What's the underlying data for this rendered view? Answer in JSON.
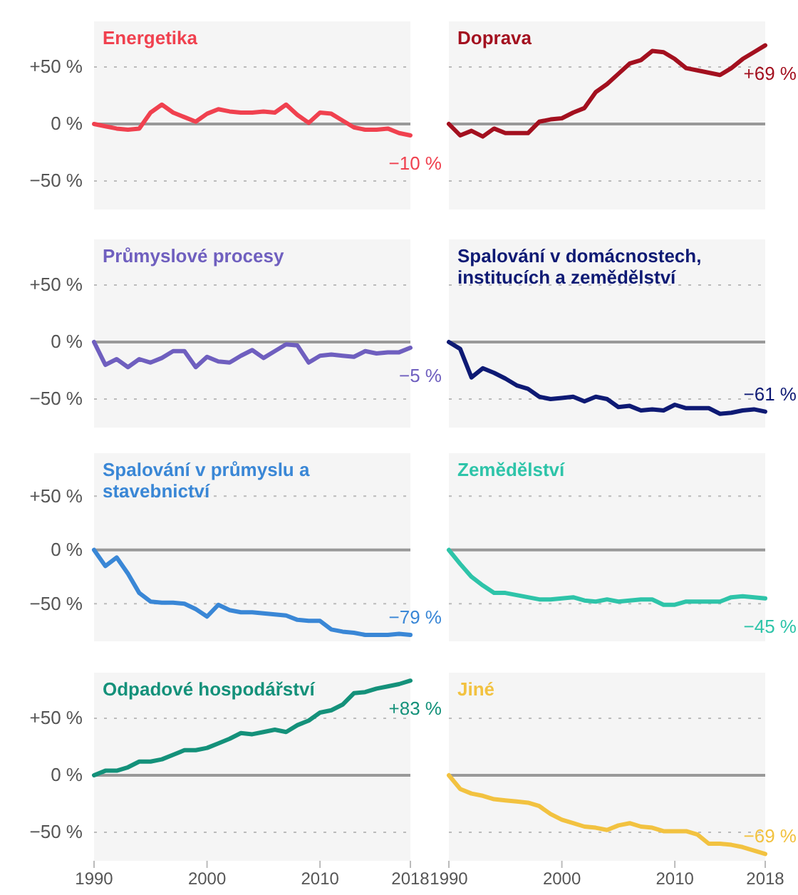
{
  "chart_data": [
    {
      "type": "line",
      "title": "Energetika",
      "x": [
        1990,
        1991,
        1992,
        1993,
        1994,
        1995,
        1996,
        1997,
        1998,
        1999,
        2000,
        2001,
        2002,
        2003,
        2004,
        2005,
        2006,
        2007,
        2008,
        2009,
        2010,
        2011,
        2012,
        2013,
        2014,
        2015,
        2016,
        2017,
        2018
      ],
      "series": [
        {
          "color": "#f0414f",
          "values": [
            0,
            -2,
            -4,
            -5,
            -4,
            10,
            17,
            10,
            6,
            2,
            9,
            13,
            11,
            10,
            10,
            11,
            10,
            17,
            8,
            1,
            10,
            9,
            3,
            -3,
            -5,
            -5,
            -4,
            -8,
            -10
          ]
        }
      ],
      "xlim": [
        1990,
        2018
      ],
      "xticks": [
        1990,
        2000,
        2010,
        2018
      ],
      "ylim": [
        -75,
        90
      ],
      "yticks": [
        {
          "value": -50,
          "label": "−50 %"
        },
        {
          "value": 0,
          "label": "0 %"
        },
        {
          "value": 50,
          "label": "+50 %"
        }
      ],
      "grid": "y",
      "tick_labels": "y",
      "annotations": [
        "−10 %"
      ]
    },
    {
      "type": "line",
      "title": "Doprava",
      "x": [
        1990,
        1991,
        1992,
        1993,
        1994,
        1995,
        1996,
        1997,
        1998,
        1999,
        2000,
        2001,
        2002,
        2003,
        2004,
        2005,
        2006,
        2007,
        2008,
        2009,
        2010,
        2011,
        2012,
        2013,
        2014,
        2015,
        2016,
        2017,
        2018
      ],
      "series": [
        {
          "color": "#a3101f",
          "values": [
            0,
            -10,
            -6,
            -11,
            -4,
            -8,
            -8,
            -8,
            2,
            4,
            5,
            10,
            14,
            28,
            35,
            44,
            53,
            56,
            64,
            63,
            57,
            49,
            47,
            45,
            43,
            49,
            57,
            63,
            69
          ]
        }
      ],
      "xlim": [
        1990,
        2018
      ],
      "xticks": [
        1990,
        2000,
        2010,
        2018
      ],
      "ylim": [
        -75,
        90
      ],
      "yticks": [
        -50,
        0,
        50
      ],
      "grid": "y",
      "tick_labels": false,
      "annotations": [
        "+69 %"
      ]
    },
    {
      "type": "line",
      "title": "Průmyslové procesy",
      "x": [
        1990,
        1991,
        1992,
        1993,
        1994,
        1995,
        1996,
        1997,
        1998,
        1999,
        2000,
        2001,
        2002,
        2003,
        2004,
        2005,
        2006,
        2007,
        2008,
        2009,
        2010,
        2011,
        2012,
        2013,
        2014,
        2015,
        2016,
        2017,
        2018
      ],
      "series": [
        {
          "color": "#6f5fbf",
          "values": [
            0,
            -20,
            -15,
            -22,
            -15,
            -18,
            -14,
            -8,
            -8,
            -22,
            -13,
            -17,
            -18,
            -12,
            -7,
            -14,
            -8,
            -2,
            -3,
            -18,
            -12,
            -11,
            -12,
            -13,
            -8,
            -10,
            -9,
            -9,
            -5
          ]
        }
      ],
      "xlim": [
        1990,
        2018
      ],
      "xticks": [
        1990,
        2000,
        2010,
        2018
      ],
      "ylim": [
        -75,
        90
      ],
      "yticks": [
        {
          "value": -50,
          "label": "−50 %"
        },
        {
          "value": 0,
          "label": "0 %"
        },
        {
          "value": 50,
          "label": "+50 %"
        }
      ],
      "grid": "y",
      "tick_labels": "y",
      "annotations": [
        "−5 %"
      ]
    },
    {
      "type": "line",
      "title": "Spalování v domácnostech, institucích a zemědělství",
      "x": [
        1990,
        1991,
        1992,
        1993,
        1994,
        1995,
        1996,
        1997,
        1998,
        1999,
        2000,
        2001,
        2002,
        2003,
        2004,
        2005,
        2006,
        2007,
        2008,
        2009,
        2010,
        2011,
        2012,
        2013,
        2014,
        2015,
        2016,
        2017,
        2018
      ],
      "series": [
        {
          "color": "#0e1a74",
          "values": [
            0,
            -6,
            -31,
            -23,
            -27,
            -32,
            -38,
            -41,
            -48,
            -50,
            -49,
            -48,
            -52,
            -48,
            -50,
            -57,
            -56,
            -60,
            -59,
            -60,
            -55,
            -58,
            -58,
            -58,
            -63,
            -62,
            -60,
            -59,
            -61
          ]
        }
      ],
      "xlim": [
        1990,
        2018
      ],
      "xticks": [
        1990,
        2000,
        2010,
        2018
      ],
      "ylim": [
        -75,
        90
      ],
      "yticks": [
        -50,
        0,
        50
      ],
      "grid": "y",
      "tick_labels": false,
      "annotations": [
        "−61 %"
      ]
    },
    {
      "type": "line",
      "title": "Spalování v průmyslu a stavebnictví",
      "x": [
        1990,
        1991,
        1992,
        1993,
        1994,
        1995,
        1996,
        1997,
        1998,
        1999,
        2000,
        2001,
        2002,
        2003,
        2004,
        2005,
        2006,
        2007,
        2008,
        2009,
        2010,
        2011,
        2012,
        2013,
        2014,
        2015,
        2016,
        2017,
        2018
      ],
      "series": [
        {
          "color": "#3a87d6",
          "values": [
            0,
            -15,
            -7,
            -22,
            -40,
            -48,
            -49,
            -49,
            -50,
            -55,
            -62,
            -51,
            -56,
            -58,
            -58,
            -59,
            -60,
            -61,
            -65,
            -66,
            -66,
            -74,
            -76,
            -77,
            -79,
            -79,
            -79,
            -78,
            -79
          ]
        }
      ],
      "xlim": [
        1990,
        2018
      ],
      "xticks": [
        1990,
        2000,
        2010,
        2018
      ],
      "ylim": [
        -85,
        90
      ],
      "yticks": [
        {
          "value": -50,
          "label": "−50 %"
        },
        {
          "value": 0,
          "label": "0 %"
        },
        {
          "value": 50,
          "label": "+50 %"
        }
      ],
      "grid": "y",
      "tick_labels": "y",
      "annotations": [
        "−79 %"
      ]
    },
    {
      "type": "line",
      "title": "Zemědělství",
      "x": [
        1990,
        1991,
        1992,
        1993,
        1994,
        1995,
        1996,
        1997,
        1998,
        1999,
        2000,
        2001,
        2002,
        2003,
        2004,
        2005,
        2006,
        2007,
        2008,
        2009,
        2010,
        2011,
        2012,
        2013,
        2014,
        2015,
        2016,
        2017,
        2018
      ],
      "series": [
        {
          "color": "#2ec4a9",
          "values": [
            0,
            -13,
            -25,
            -33,
            -40,
            -40,
            -42,
            -44,
            -46,
            -46,
            -45,
            -44,
            -47,
            -48,
            -46,
            -48,
            -47,
            -46,
            -46,
            -51,
            -51,
            -48,
            -48,
            -48,
            -48,
            -44,
            -43,
            -44,
            -45
          ]
        }
      ],
      "xlim": [
        1990,
        2018
      ],
      "xticks": [
        1990,
        2000,
        2010,
        2018
      ],
      "ylim": [
        -85,
        90
      ],
      "yticks": [
        -50,
        0,
        50
      ],
      "grid": "y",
      "tick_labels": false,
      "annotations": [
        "−45 %"
      ]
    },
    {
      "type": "line",
      "title": "Odpadové hospodářství",
      "x": [
        1990,
        1991,
        1992,
        1993,
        1994,
        1995,
        1996,
        1997,
        1998,
        1999,
        2000,
        2001,
        2002,
        2003,
        2004,
        2005,
        2006,
        2007,
        2008,
        2009,
        2010,
        2011,
        2012,
        2013,
        2014,
        2015,
        2016,
        2017,
        2018
      ],
      "series": [
        {
          "color": "#14917a",
          "values": [
            0,
            4,
            4,
            7,
            12,
            12,
            14,
            18,
            22,
            22,
            24,
            28,
            32,
            37,
            36,
            38,
            40,
            38,
            44,
            48,
            55,
            57,
            62,
            72,
            73,
            76,
            78,
            80,
            83
          ]
        }
      ],
      "xlim": [
        1990,
        2018
      ],
      "xticks": [
        1990,
        2000,
        2010,
        2018
      ],
      "ylim": [
        -75,
        90
      ],
      "yticks": [
        {
          "value": -50,
          "label": "−50 %"
        },
        {
          "value": 0,
          "label": "0 %"
        },
        {
          "value": 50,
          "label": "+50 %"
        }
      ],
      "grid": "y",
      "annotations": [
        "+83 %"
      ]
    },
    {
      "type": "line",
      "title": "Jiné",
      "x": [
        1990,
        1991,
        1992,
        1993,
        1994,
        1995,
        1996,
        1997,
        1998,
        1999,
        2000,
        2001,
        2002,
        2003,
        2004,
        2005,
        2006,
        2007,
        2008,
        2009,
        2010,
        2011,
        2012,
        2013,
        2014,
        2015,
        2016,
        2017,
        2018
      ],
      "series": [
        {
          "color": "#f2c240",
          "values": [
            0,
            -12,
            -16,
            -18,
            -21,
            -22,
            -23,
            -24,
            -27,
            -34,
            -39,
            -42,
            -45,
            -46,
            -48,
            -44,
            -42,
            -45,
            -46,
            -49,
            -49,
            -49,
            -52,
            -60,
            -60,
            -61,
            -63,
            -66,
            -69
          ]
        }
      ],
      "xlim": [
        1990,
        2018
      ],
      "xticks": [
        1990,
        2000,
        2010,
        2018
      ],
      "ylim": [
        -75,
        90
      ],
      "yticks": [
        -50,
        0,
        50
      ],
      "grid": "y",
      "tick_labels": "x",
      "annotations": [
        "−69 %"
      ]
    }
  ]
}
